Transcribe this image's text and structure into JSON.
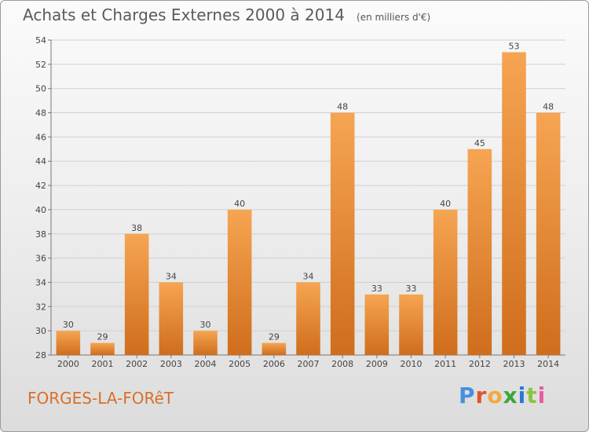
{
  "title": "Achats et Charges Externes 2000 à 2014",
  "subtitle": "(en milliers d'€)",
  "commune": "FORGES-LA-FORêT",
  "logo_text": "Proxiti",
  "colors": {
    "bar_top": "#f6a552",
    "bar_bottom": "#cf6d1c",
    "commune_text": "#d8702a",
    "logo_letters": [
      "#4a8ee0",
      "#e0542a",
      "#f3a93a",
      "#3aa63a",
      "#2b78d4",
      "#8bc43f",
      "#e85aa0"
    ]
  },
  "chart_data": {
    "type": "bar",
    "title": "Achats et Charges Externes 2000 à 2014",
    "subtitle": "(en milliers d'€)",
    "categories": [
      "2000",
      "2001",
      "2002",
      "2003",
      "2004",
      "2005",
      "2006",
      "2007",
      "2008",
      "2009",
      "2010",
      "2011",
      "2012",
      "2013",
      "2014"
    ],
    "values": [
      30,
      29,
      38,
      34,
      30,
      40,
      29,
      34,
      48,
      33,
      33,
      40,
      45,
      53,
      48
    ],
    "ylim": [
      28,
      54
    ],
    "yticks": [
      28,
      30,
      32,
      34,
      36,
      38,
      40,
      42,
      44,
      46,
      48,
      50,
      52,
      54
    ],
    "grid": true,
    "data_labels": true
  }
}
